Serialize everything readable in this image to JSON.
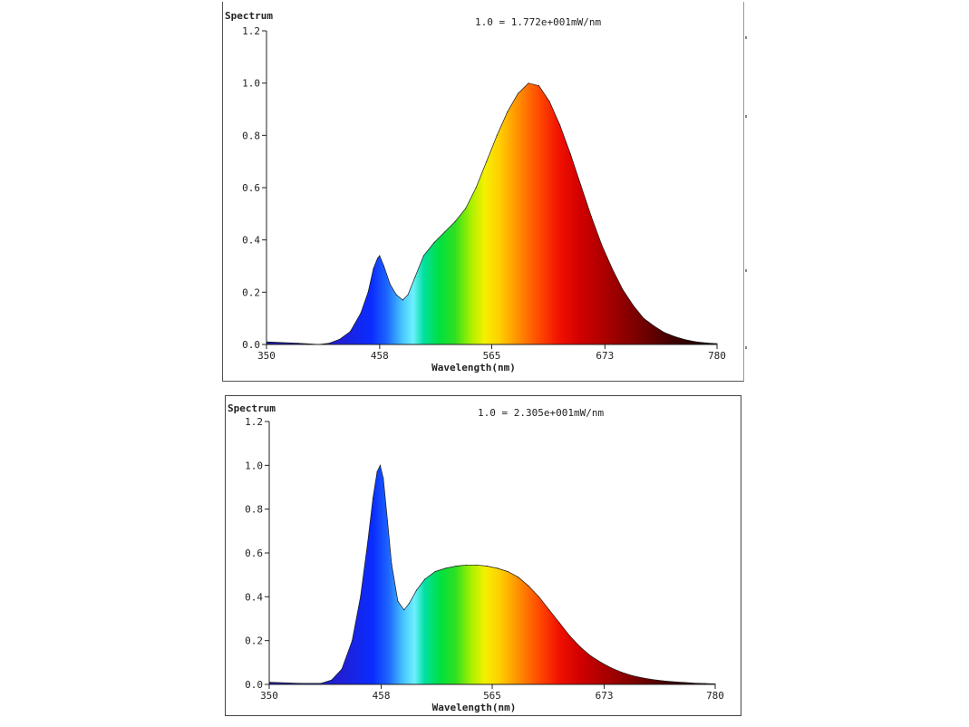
{
  "chart_data": [
    {
      "type": "area",
      "title": "Spectrum",
      "annotation": "1.0 = 1.772e+001mW/nm",
      "xlabel": "Wavelength(nm)",
      "ylabel": "",
      "xlim": [
        350,
        780
      ],
      "ylim": [
        0.0,
        1.2
      ],
      "xticks": [
        "350",
        "458",
        "565",
        "673",
        "780"
      ],
      "yticks": [
        "0.0",
        "0.2",
        "0.4",
        "0.6",
        "0.8",
        "1.0",
        "1.2"
      ],
      "grid": false,
      "fill": "visible-spectrum-gradient",
      "series": [
        {
          "x": [
            350,
            380,
            400,
            410,
            420,
            430,
            440,
            447,
            452,
            456,
            458,
            462,
            468,
            474,
            480,
            485,
            492,
            500,
            510,
            520,
            530,
            540,
            550,
            560,
            570,
            580,
            590,
            600,
            610,
            620,
            630,
            640,
            650,
            660,
            670,
            680,
            690,
            700,
            710,
            720,
            730,
            740,
            750,
            760,
            770,
            780
          ],
          "values": [
            0.01,
            0.005,
            0.0,
            0.005,
            0.02,
            0.05,
            0.12,
            0.2,
            0.29,
            0.33,
            0.34,
            0.3,
            0.23,
            0.19,
            0.17,
            0.19,
            0.26,
            0.34,
            0.39,
            0.43,
            0.47,
            0.52,
            0.6,
            0.7,
            0.8,
            0.89,
            0.96,
            1.0,
            0.99,
            0.93,
            0.84,
            0.73,
            0.61,
            0.49,
            0.38,
            0.29,
            0.21,
            0.15,
            0.1,
            0.07,
            0.045,
            0.03,
            0.018,
            0.01,
            0.006,
            0.003
          ]
        }
      ]
    },
    {
      "type": "area",
      "title": "Spectrum",
      "annotation": "1.0 = 2.305e+001mW/nm",
      "xlabel": "Wavelength(nm)",
      "ylabel": "",
      "xlim": [
        350,
        780
      ],
      "ylim": [
        0.0,
        1.2
      ],
      "xticks": [
        "350",
        "458",
        "565",
        "673",
        "780"
      ],
      "yticks": [
        "0.0",
        "0.2",
        "0.4",
        "0.6",
        "0.8",
        "1.0",
        "1.2"
      ],
      "grid": false,
      "fill": "visible-spectrum-gradient",
      "series": [
        {
          "x": [
            350,
            380,
            400,
            410,
            420,
            430,
            438,
            445,
            450,
            454,
            457,
            460,
            464,
            468,
            474,
            480,
            485,
            492,
            500,
            510,
            520,
            530,
            540,
            550,
            560,
            570,
            580,
            590,
            600,
            610,
            620,
            630,
            640,
            650,
            660,
            670,
            680,
            690,
            700,
            710,
            720,
            730,
            740,
            750,
            760,
            770,
            780
          ],
          "values": [
            0.01,
            0.005,
            0.005,
            0.02,
            0.07,
            0.2,
            0.4,
            0.65,
            0.85,
            0.97,
            1.0,
            0.94,
            0.75,
            0.55,
            0.38,
            0.34,
            0.37,
            0.43,
            0.48,
            0.515,
            0.53,
            0.54,
            0.545,
            0.545,
            0.54,
            0.53,
            0.515,
            0.49,
            0.45,
            0.4,
            0.34,
            0.28,
            0.22,
            0.17,
            0.13,
            0.1,
            0.075,
            0.055,
            0.04,
            0.03,
            0.022,
            0.016,
            0.012,
            0.009,
            0.006,
            0.004,
            0.002
          ]
        }
      ]
    }
  ]
}
